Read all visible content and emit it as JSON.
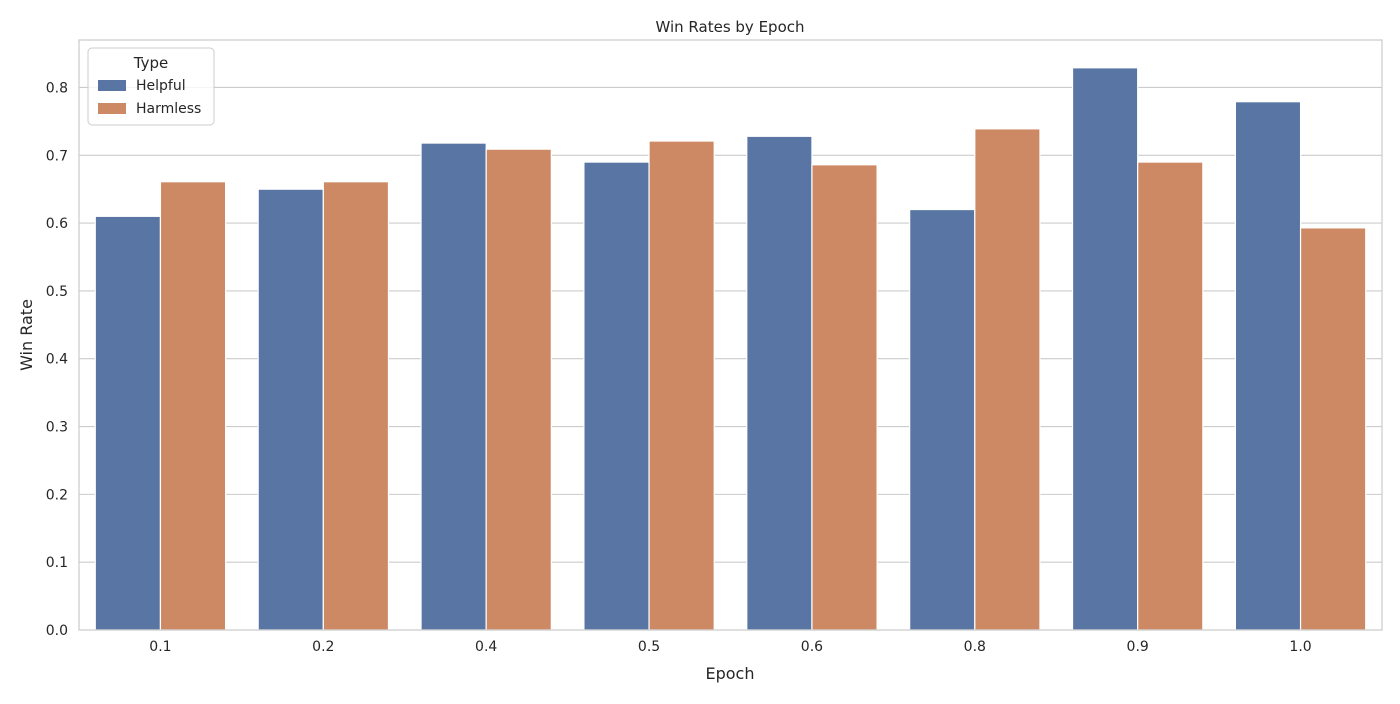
{
  "chart_data": {
    "type": "bar",
    "title": "Win Rates by Epoch",
    "xlabel": "Epoch",
    "ylabel": "Win Rate",
    "categories": [
      "0.1",
      "0.2",
      "0.4",
      "0.5",
      "0.6",
      "0.8",
      "0.9",
      "1.0"
    ],
    "series": [
      {
        "name": "Helpful",
        "color": "#5975a4",
        "values": [
          0.61,
          0.65,
          0.718,
          0.69,
          0.728,
          0.62,
          0.829,
          0.779
        ]
      },
      {
        "name": "Harmless",
        "color": "#cc8963",
        "values": [
          0.661,
          0.661,
          0.709,
          0.721,
          0.686,
          0.739,
          0.69,
          0.593
        ]
      }
    ],
    "ylim": [
      0,
      0.87
    ],
    "yticks": [
      "0.0",
      "0.1",
      "0.2",
      "0.3",
      "0.4",
      "0.5",
      "0.6",
      "0.7",
      "0.8"
    ],
    "legend": {
      "title": "Type",
      "placement": "top-left"
    },
    "grid": "horizontal"
  }
}
